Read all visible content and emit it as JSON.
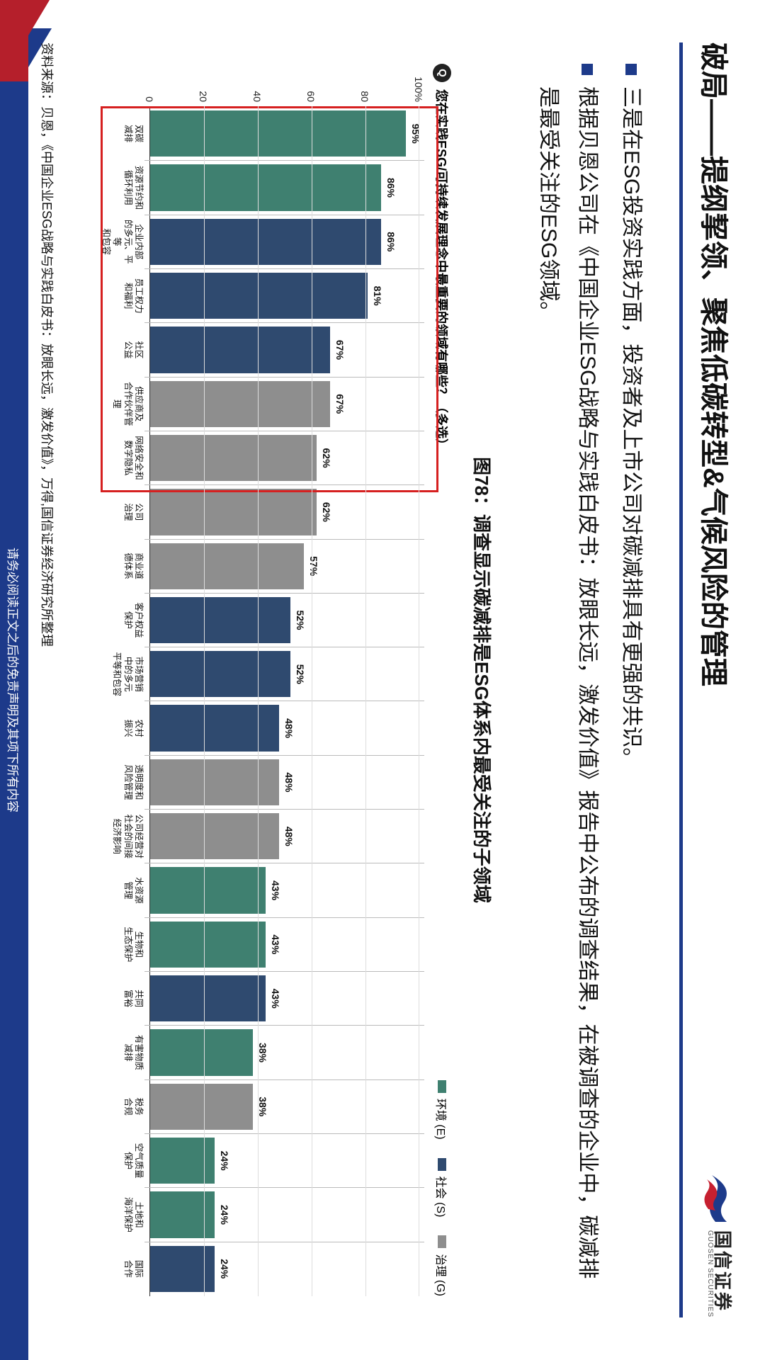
{
  "title": "破局——提纲挈领、聚焦低碳转型&气候风险的管理",
  "logo": {
    "cn": "国信证券",
    "en": "GUOSEN SECURITIES"
  },
  "bullets": [
    "三是在ESG投资实践方面，投资者及上市公司对碳减排具有更强的共识。",
    "根据贝恩公司在《中国企业ESG战略与实践白皮书：放眼长远，激发价值》报告中公布的调查结果，在被调查的企业中，碳减排是最受关注的ESG领域。"
  ],
  "chart": {
    "figure_label": "图78：调查显示碳减排是ESG体系内最受关注的子领域",
    "question": "您在实践ESG/可持续发展理念中最重要的领域有哪些？（多选）",
    "legend": [
      {
        "label": "环境 (E)",
        "color": "#3f8070"
      },
      {
        "label": "社会 (S)",
        "color": "#2f4a6f"
      },
      {
        "label": "治理 (G)",
        "color": "#8e8e8e"
      }
    ],
    "ylim": [
      0,
      100
    ],
    "yticks": [
      0,
      20,
      40,
      60,
      80,
      100
    ],
    "ytick_suffix_top": "%",
    "highlight_first_n": 7,
    "colors": {
      "E": "#3f8070",
      "S": "#2f4a6f",
      "G": "#8e8e8e"
    },
    "items": [
      {
        "label": "双碳\n减排",
        "value": 95,
        "cat": "E"
      },
      {
        "label": "资源节约和\n循环利用",
        "value": 86,
        "cat": "E"
      },
      {
        "label": "企业内部\n的多元、平等\n和包容",
        "value": 86,
        "cat": "S"
      },
      {
        "label": "员工权力\n和福利",
        "value": 81,
        "cat": "S"
      },
      {
        "label": "社区\n公益",
        "value": 67,
        "cat": "S"
      },
      {
        "label": "供应商及\n合作伙伴管理",
        "value": 67,
        "cat": "G"
      },
      {
        "label": "网络安全和\n数字隐私",
        "value": 62,
        "cat": "G"
      },
      {
        "label": "公司\n治理",
        "value": 62,
        "cat": "G"
      },
      {
        "label": "商业道\n德体系",
        "value": 57,
        "cat": "G"
      },
      {
        "label": "客户权益\n保护",
        "value": 52,
        "cat": "S"
      },
      {
        "label": "市场营销\n中的多元\n平等和包容",
        "value": 52,
        "cat": "S"
      },
      {
        "label": "农村\n振兴",
        "value": 48,
        "cat": "S"
      },
      {
        "label": "透明度和\n风险管理",
        "value": 48,
        "cat": "G"
      },
      {
        "label": "公司经营对\n社会的间接\n经济影响",
        "value": 48,
        "cat": "G"
      },
      {
        "label": "水资源\n管理",
        "value": 43,
        "cat": "E"
      },
      {
        "label": "生物和\n生态保护",
        "value": 43,
        "cat": "E"
      },
      {
        "label": "共同\n富裕",
        "value": 43,
        "cat": "S"
      },
      {
        "label": "有害物质\n减排",
        "value": 38,
        "cat": "E"
      },
      {
        "label": "税务\n合规",
        "value": 38,
        "cat": "G"
      },
      {
        "label": "空气质量\n保护",
        "value": 24,
        "cat": "E"
      },
      {
        "label": "土地和\n海洋保护",
        "value": 24,
        "cat": "E"
      },
      {
        "label": "国际\n合作",
        "value": 24,
        "cat": "S"
      }
    ]
  },
  "source": "资料来源：贝恩，《中国企业ESG战略与实践白皮书：放眼长远，激发价值》，万得,国信证券经济研究所整理",
  "footer": "请务必阅读正文之后的免责声明及其项下所有内容"
}
